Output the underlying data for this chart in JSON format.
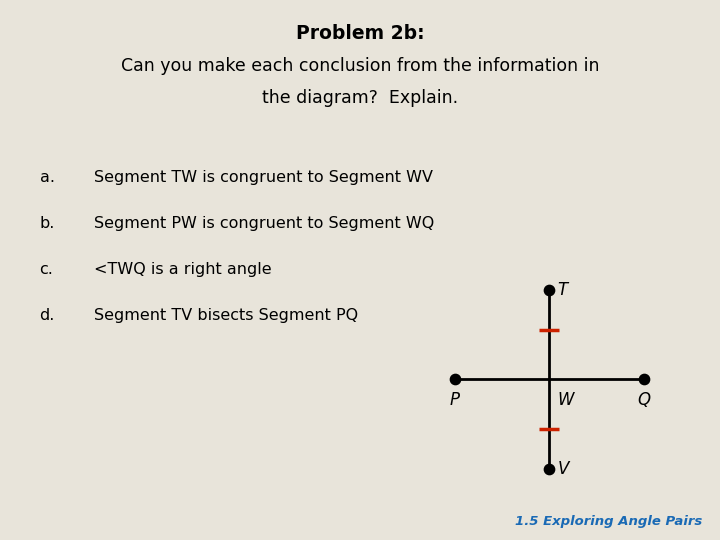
{
  "bg_color": "#e8e4da",
  "diagram_bg": "#ffffff",
  "title_line1": "Problem 2b:",
  "title_line2": "Can you make each conclusion from the information in",
  "title_line3": "the diagram?  Explain.",
  "items": [
    [
      "a.",
      "Segment TW is congruent to Segment WV"
    ],
    [
      "b.",
      "Segment PW is congruent to Segment WQ"
    ],
    [
      "c.",
      "<TWQ is a right angle"
    ],
    [
      "d.",
      "Segment TV bisects Segment PQ"
    ]
  ],
  "footer": "1.5 Exploring Angle Pairs",
  "footer_color": "#1a6ab5",
  "tick_color": "#cc2200",
  "line_color": "#000000",
  "dot_color": "#000000"
}
